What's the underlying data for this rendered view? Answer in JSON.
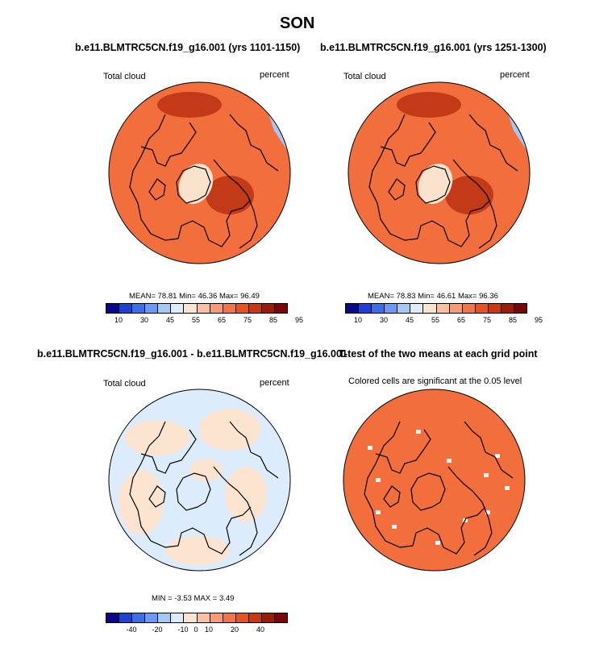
{
  "page": {
    "title": "SON"
  },
  "panels": [
    {
      "title": "b.e11.BLMTRC5CN.f19_g16.001 (yrs 1101-1150)",
      "left_label": "Total cloud",
      "right_label": "percent",
      "stats": {
        "mean_label": "MEAN=",
        "mean": "78.81",
        "min_label": "Min=",
        "min": "46.36",
        "max_label": "Max=",
        "max": "96.49"
      },
      "colorbar": {
        "colors": [
          "#08088a",
          "#1c3fe0",
          "#3a6ef0",
          "#6a9af5",
          "#a6c8f8",
          "#dcecfc",
          "#fde4d0",
          "#fcc0a0",
          "#f89a72",
          "#f47448",
          "#ec5022",
          "#d03410",
          "#a01a08",
          "#780808"
        ],
        "ticks": [
          "10",
          "30",
          "45",
          "55",
          "65",
          "75",
          "85",
          "95"
        ]
      },
      "map": {
        "base": "#f26e3c",
        "pole": "#c23a18",
        "greenland": "#fbe2cc",
        "edge": "#a9c6f2"
      }
    },
    {
      "title": "b.e11.BLMTRC5CN.f19_g16.001 (yrs 1251-1300)",
      "left_label": "Total cloud",
      "right_label": "percent",
      "stats": {
        "mean_label": "MEAN=",
        "mean": "78.83",
        "min_label": "Min=",
        "min": "46.61",
        "max_label": "Max=",
        "max": "96.36"
      },
      "colorbar": {
        "colors": [
          "#08088a",
          "#1c3fe0",
          "#3a6ef0",
          "#6a9af5",
          "#a6c8f8",
          "#dcecfc",
          "#fde4d0",
          "#fcc0a0",
          "#f89a72",
          "#f47448",
          "#ec5022",
          "#d03410",
          "#a01a08",
          "#780808"
        ],
        "ticks": [
          "10",
          "30",
          "45",
          "55",
          "65",
          "75",
          "85",
          "95"
        ]
      },
      "map": {
        "base": "#f26e3c",
        "pole": "#c23a18",
        "greenland": "#fbe2cc",
        "edge": "#a9c6f2"
      }
    },
    {
      "title": "b.e11.BLMTRC5CN.f19_g16.001 - b.e11.BLMTRC5CN.f19_g16.001",
      "left_label": "Total cloud",
      "right_label": "percent",
      "stats": {
        "min_label": "MIN =",
        "min": "-3.53",
        "max_label": "MAX =",
        "max": "3.49"
      },
      "colorbar": {
        "colors": [
          "#08088a",
          "#1c3fe0",
          "#3a6ef0",
          "#6a9af5",
          "#a6c8f8",
          "#dcecfc",
          "#fde4d0",
          "#fcc0a0",
          "#f89a72",
          "#f47448",
          "#ec5022",
          "#d03410",
          "#a01a08",
          "#780808"
        ],
        "ticks": [
          "-40",
          "-20",
          "-10",
          "0",
          "10",
          "20",
          "40"
        ]
      },
      "map": {
        "base": "#dcecfc",
        "patch": "#fde4d0"
      }
    },
    {
      "title": "T-test of the two means at each grid point",
      "left_label": "Colored cells are significant at the 0.05 level",
      "map": {
        "base": "#f26e3c"
      }
    }
  ]
}
